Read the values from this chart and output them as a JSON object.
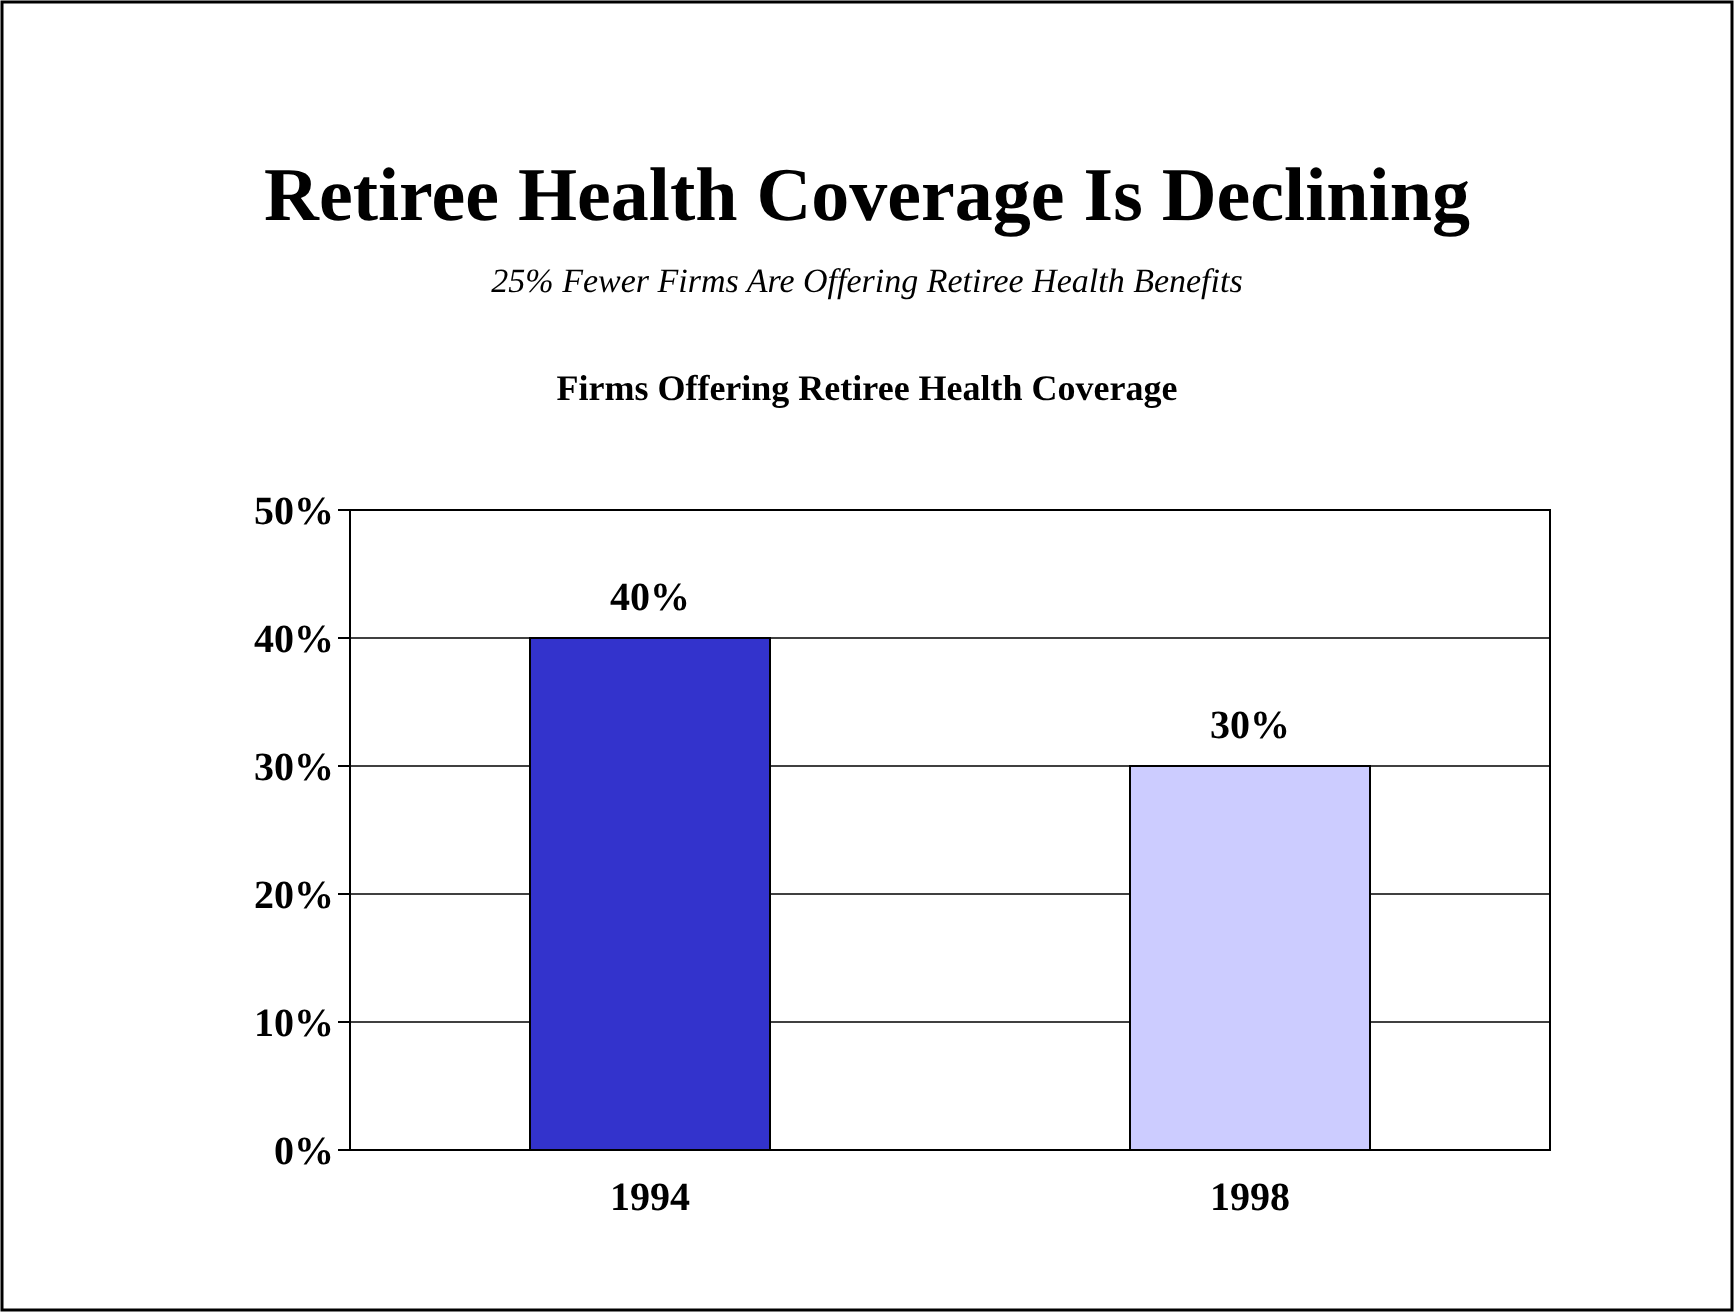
{
  "chart_data": {
    "type": "bar",
    "title": "Retiree Health Coverage Is Declining",
    "subtitle": "25% Fewer Firms Are Offering Retiree Health Benefits",
    "xlabel": "Firms Offering Retiree Health Coverage",
    "categories": [
      "1994",
      "1998"
    ],
    "values": [
      40,
      30
    ],
    "colors": [
      "#3333cc",
      "#ccccff"
    ],
    "value_labels": [
      "40%",
      "30%"
    ],
    "ylim": [
      0,
      50
    ],
    "yticks": [
      {
        "value": 0,
        "label": "0%"
      },
      {
        "value": 10,
        "label": "10%"
      },
      {
        "value": 20,
        "label": "20%"
      },
      {
        "value": 30,
        "label": "30%"
      },
      {
        "value": 40,
        "label": "40%"
      },
      {
        "value": 50,
        "label": "50%"
      }
    ],
    "grid": "y"
  }
}
